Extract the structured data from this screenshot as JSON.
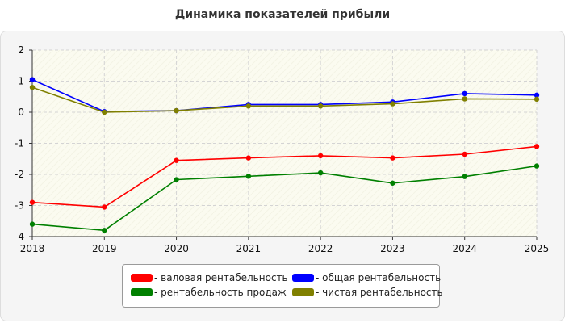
{
  "chart_title": "Динамика показателей прибыли",
  "chart_data": {
    "type": "line",
    "title": "Динамика показателей прибыли",
    "xlabel": "",
    "ylabel": "",
    "x": [
      "2018",
      "2019",
      "2020",
      "2021",
      "2022",
      "2023",
      "2024",
      "2025"
    ],
    "ylim": [
      -4,
      2
    ],
    "yticks": [
      "2",
      "1",
      "0",
      "-1",
      "-2",
      "-3",
      "-4"
    ],
    "grid": true,
    "legend_position": "bottom",
    "series": [
      {
        "name": "- валовая рентабельность",
        "color": "#ff0000",
        "values": [
          -2.9,
          -3.05,
          -1.55,
          -1.47,
          -1.4,
          -1.47,
          -1.35,
          -1.1
        ]
      },
      {
        "name": "- общая рентабельность",
        "color": "#0000ff",
        "values": [
          1.05,
          0.02,
          0.05,
          0.25,
          0.25,
          0.33,
          0.6,
          0.55
        ]
      },
      {
        "name": "- рентабельность продаж",
        "color": "#008000",
        "values": [
          -3.6,
          -3.8,
          -2.17,
          -2.06,
          -1.95,
          -2.28,
          -2.07,
          -1.73
        ]
      },
      {
        "name": "- чистая рентабельность",
        "color": "#808000",
        "values": [
          0.8,
          0.0,
          0.05,
          0.2,
          0.2,
          0.27,
          0.43,
          0.42
        ]
      }
    ]
  }
}
